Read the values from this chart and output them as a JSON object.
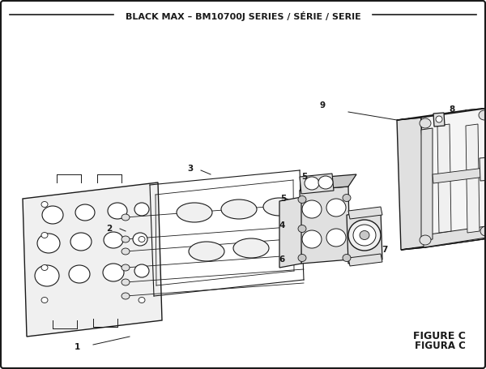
{
  "title": "BLACK MAX – BM10700J SERIES / SÉRIE / SERIE",
  "figure_label": "FIGURE C",
  "figura_label": "FIGURA C",
  "bg_color": "#ffffff",
  "lc": "#1a1a1a",
  "fill_light": "#f0f0f0",
  "fill_mid": "#e0e0e0",
  "fill_dark": "#c8c8c8",
  "figsize": [
    6.0,
    4.55
  ],
  "dpi": 100
}
